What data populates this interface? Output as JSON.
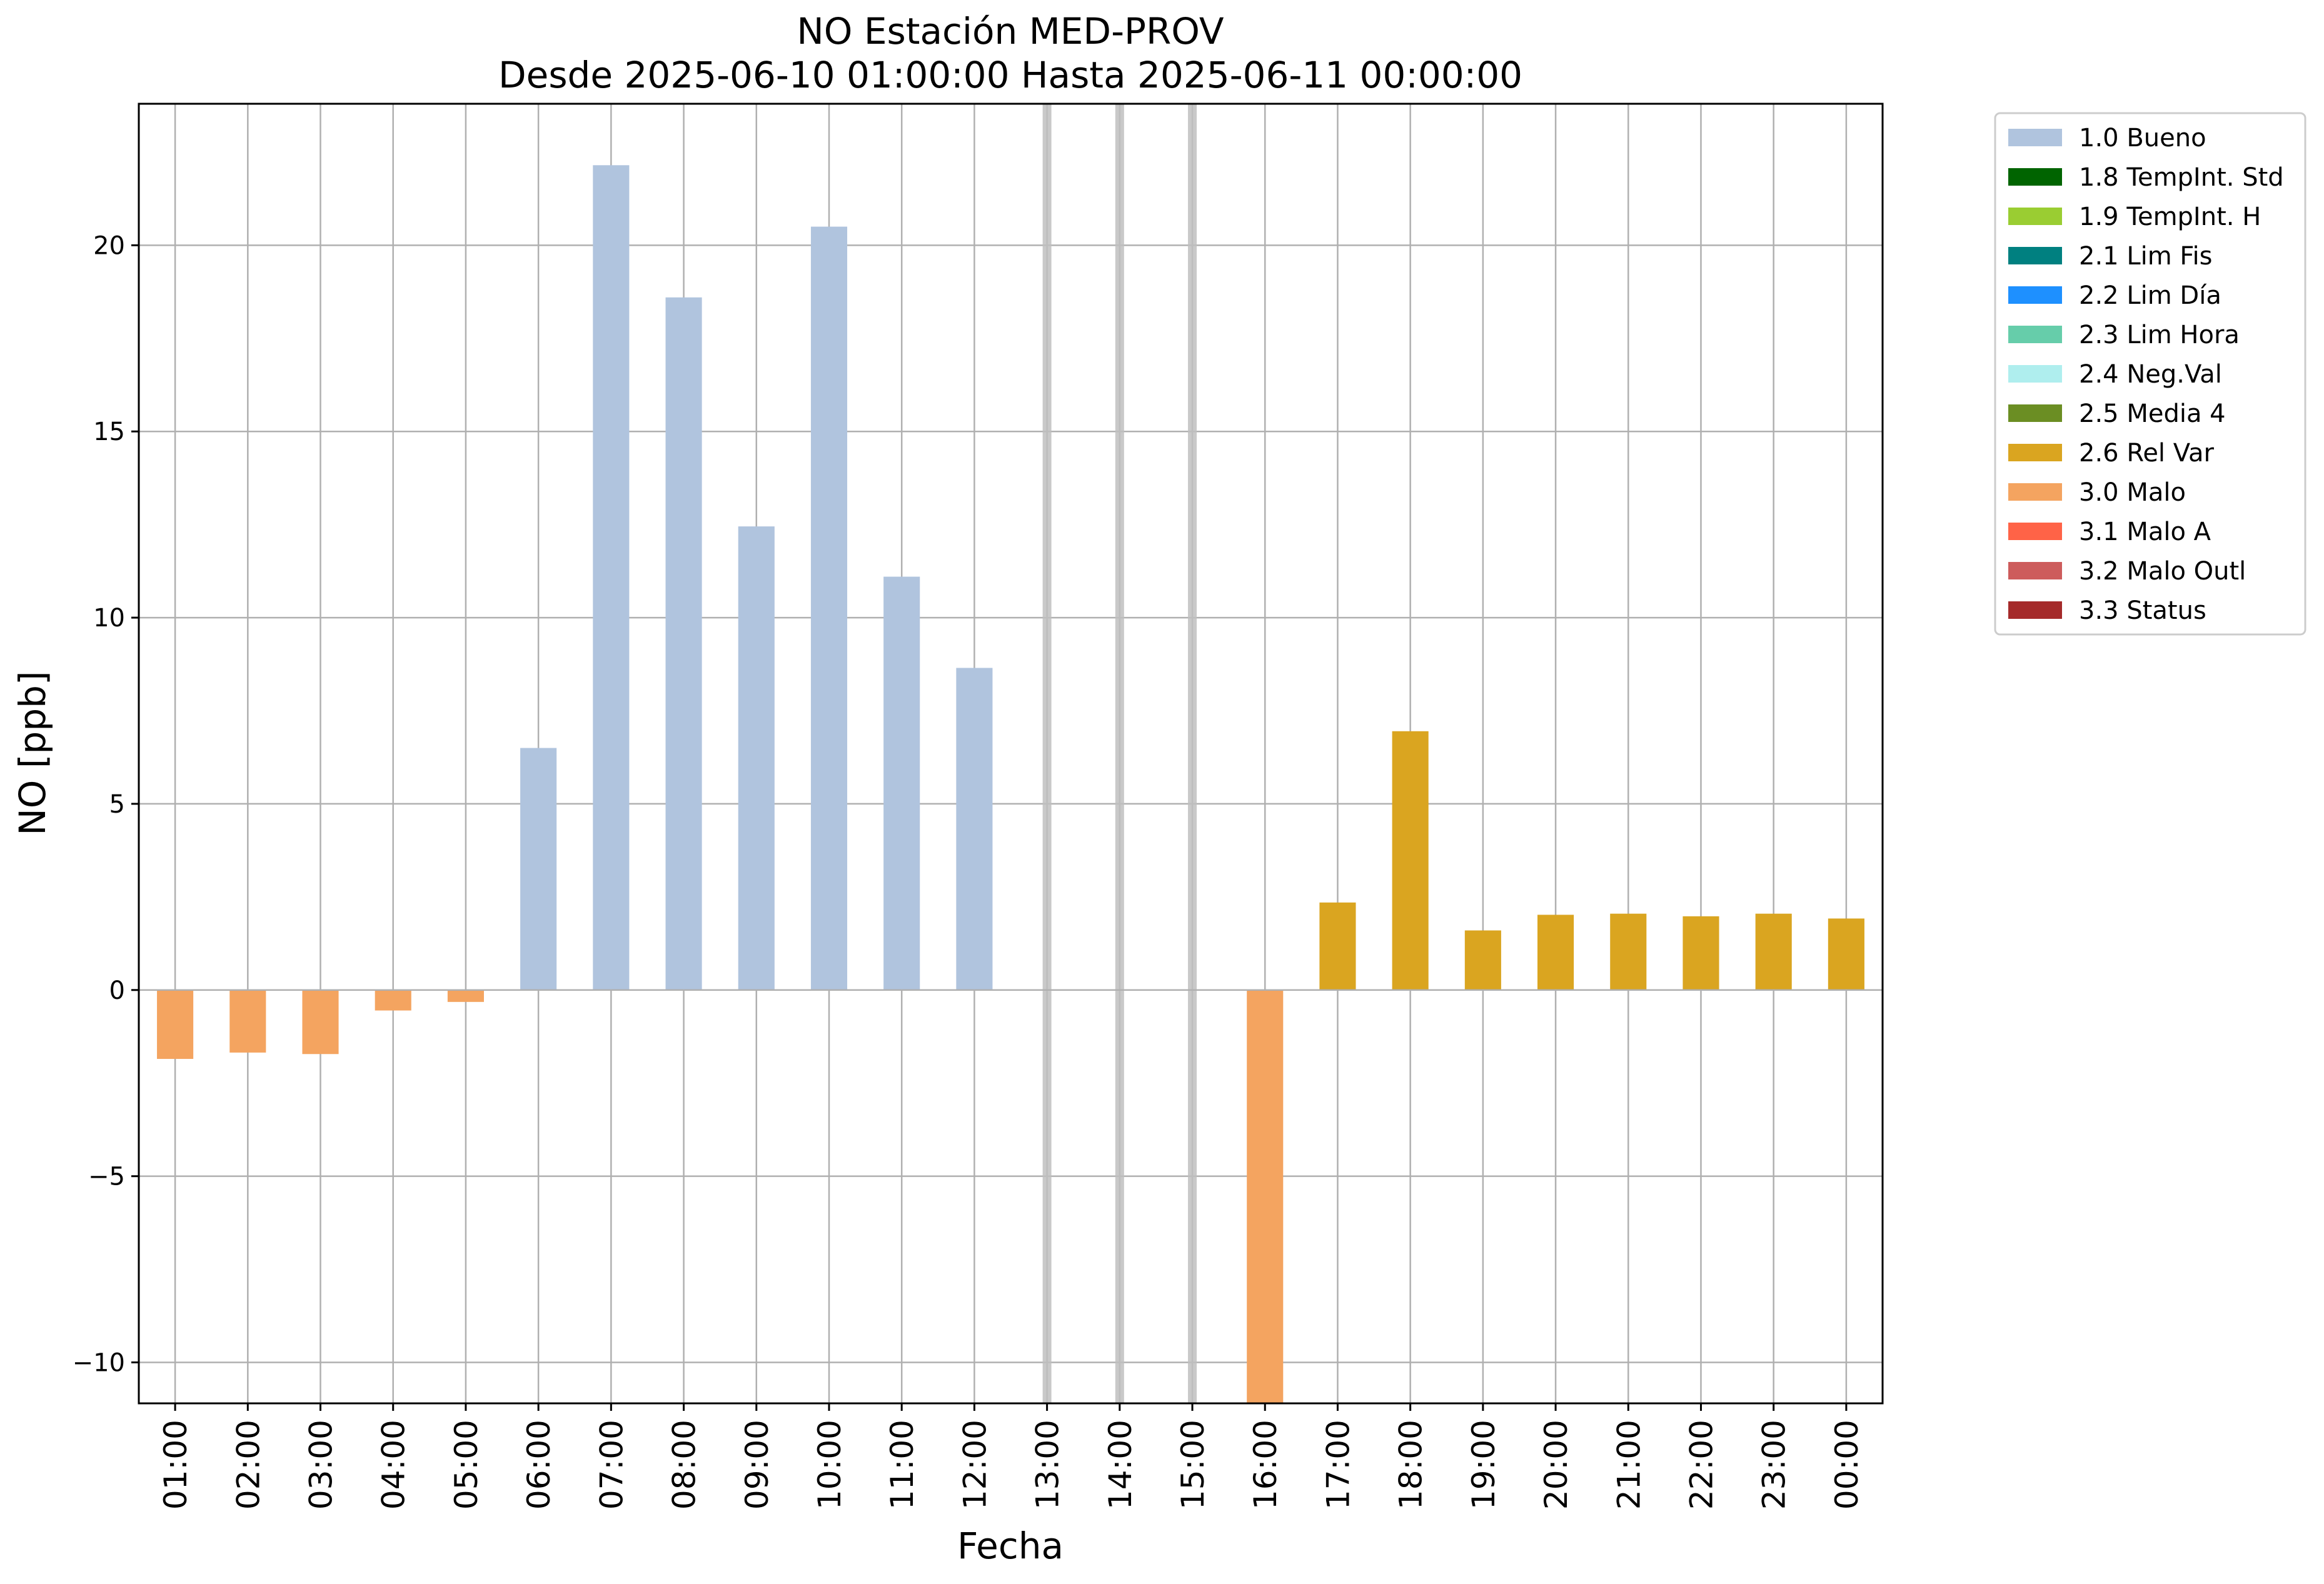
{
  "chart_data": {
    "type": "bar",
    "title": "NO Estación MED-PROV",
    "subtitle": "Desde 2025-06-10 01:00:00 Hasta 2025-06-11 00:00:00",
    "xlabel": "Fecha",
    "ylabel": "NO [ppb]",
    "ylim": [
      -11.1,
      23.8
    ],
    "yticks": [
      -10,
      -5,
      0,
      5,
      10,
      15,
      20
    ],
    "ytick_labels": [
      "−10",
      "−5",
      "0",
      "5",
      "10",
      "15",
      "20"
    ],
    "grid": true,
    "legend_position": "outside-top-right",
    "categories": [
      "01:00",
      "02:00",
      "03:00",
      "04:00",
      "05:00",
      "06:00",
      "07:00",
      "08:00",
      "09:00",
      "10:00",
      "11:00",
      "12:00",
      "13:00",
      "14:00",
      "15:00",
      "16:00",
      "17:00",
      "18:00",
      "19:00",
      "20:00",
      "21:00",
      "22:00",
      "23:00",
      "00:00"
    ],
    "values": [
      -1.85,
      -1.68,
      -1.72,
      -0.55,
      -0.32,
      6.5,
      22.15,
      18.6,
      12.45,
      20.5,
      11.1,
      8.65,
      null,
      null,
      null,
      -11.1,
      2.35,
      6.95,
      1.6,
      2.02,
      2.05,
      1.98,
      2.05,
      1.92
    ],
    "flags": [
      "3.0 Malo",
      "3.0 Malo",
      "3.0 Malo",
      "3.0 Malo",
      "3.0 Malo",
      "1.0 Bueno",
      "1.0 Bueno",
      "1.0 Bueno",
      "1.0 Bueno",
      "1.0 Bueno",
      "1.0 Bueno",
      "1.0 Bueno",
      null,
      null,
      null,
      "3.0 Malo",
      "2.6 Rel Var",
      "2.6 Rel Var",
      "2.6 Rel Var",
      "2.6 Rel Var",
      "2.6 Rel Var",
      "2.6 Rel Var",
      "2.6 Rel Var",
      "2.6 Rel Var"
    ],
    "missing_marker_color": "#bfbfbf",
    "legend": [
      {
        "label": "1.0 Bueno",
        "color": "#b0c4de"
      },
      {
        "label": "1.8 TempInt. Std",
        "color": "#006400"
      },
      {
        "label": "1.9 TempInt. H",
        "color": "#9acd32"
      },
      {
        "label": "2.1 Lim Fis",
        "color": "#008080"
      },
      {
        "label": "2.2 Lim Día",
        "color": "#1e90ff"
      },
      {
        "label": "2.3 Lim Hora",
        "color": "#66cdaa"
      },
      {
        "label": "2.4 Neg.Val",
        "color": "#afeeee"
      },
      {
        "label": "2.5 Media 4",
        "color": "#6b8e23"
      },
      {
        "label": "2.6 Rel Var",
        "color": "#daa520"
      },
      {
        "label": "3.0 Malo",
        "color": "#f4a460"
      },
      {
        "label": "3.1 Malo A",
        "color": "#ff6347"
      },
      {
        "label": "3.2 Malo Outl",
        "color": "#cd5c5c"
      },
      {
        "label": "3.3 Status",
        "color": "#a52a2a"
      }
    ]
  }
}
